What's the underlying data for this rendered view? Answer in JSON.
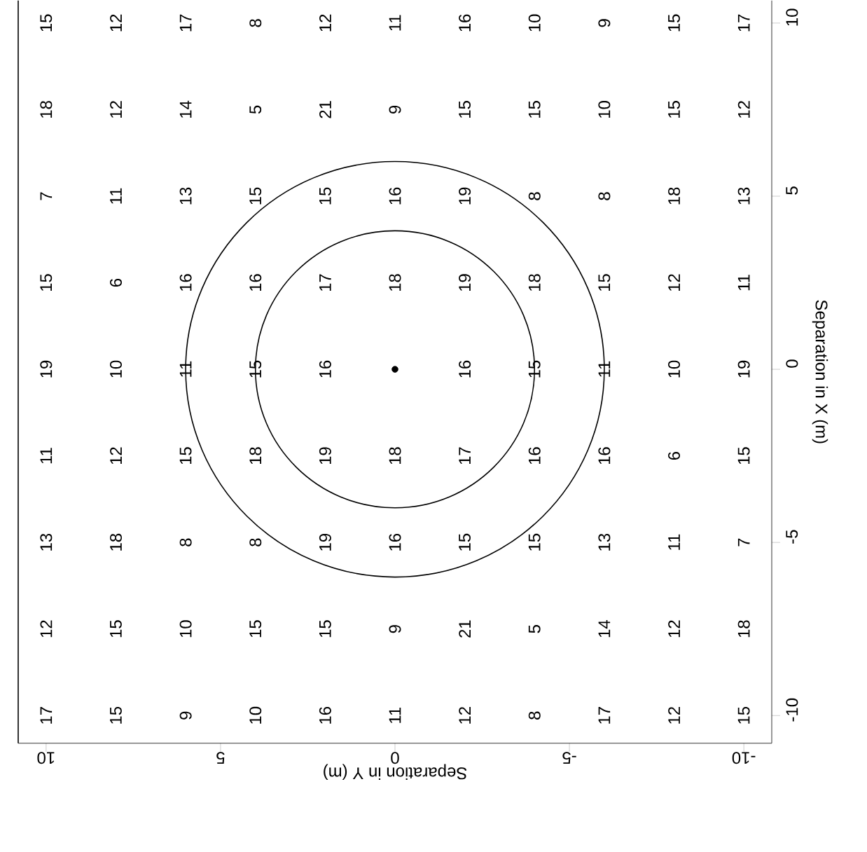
{
  "chart_data": {
    "type": "heatmap",
    "xlabel": "Separation in Y (m)",
    "ylabel": "Separation in X (m)",
    "xlim": [
      10.8,
      -10.8
    ],
    "ylim": [
      -10.8,
      10.65
    ],
    "xticks": [
      10,
      5,
      0,
      -5,
      -10
    ],
    "yticks": [
      -10,
      -5,
      0,
      5,
      10
    ],
    "x": [
      10,
      8,
      6,
      4,
      2,
      0,
      -2,
      -4,
      -6,
      -8,
      -10
    ],
    "y": [
      10,
      7.5,
      5,
      2.5,
      0,
      -2.5,
      -5,
      -7.5,
      -10
    ],
    "cells": [
      [
        15,
        12,
        17,
        8,
        12,
        11,
        16,
        10,
        9,
        15,
        17
      ],
      [
        18,
        12,
        14,
        5,
        21,
        9,
        15,
        15,
        10,
        15,
        12
      ],
      [
        7,
        11,
        13,
        15,
        15,
        16,
        19,
        8,
        8,
        18,
        13
      ],
      [
        15,
        6,
        16,
        16,
        17,
        18,
        19,
        18,
        15,
        12,
        11
      ],
      [
        19,
        10,
        11,
        15,
        16,
        null,
        16,
        15,
        11,
        10,
        19
      ],
      [
        11,
        12,
        15,
        18,
        19,
        18,
        17,
        16,
        16,
        6,
        15
      ],
      [
        13,
        18,
        8,
        8,
        19,
        16,
        15,
        15,
        13,
        11,
        7
      ],
      [
        12,
        15,
        10,
        15,
        15,
        9,
        21,
        5,
        14,
        12,
        18
      ],
      [
        17,
        15,
        9,
        10,
        16,
        11,
        12,
        8,
        17,
        12,
        15
      ]
    ],
    "data_labels": true,
    "series": [
      {
        "type": "scatter",
        "color": "#000000",
        "marker": "circle",
        "x": [
          0
        ],
        "values": [
          0
        ],
        "value_labels": [
          null
        ]
      }
    ]
  }
}
